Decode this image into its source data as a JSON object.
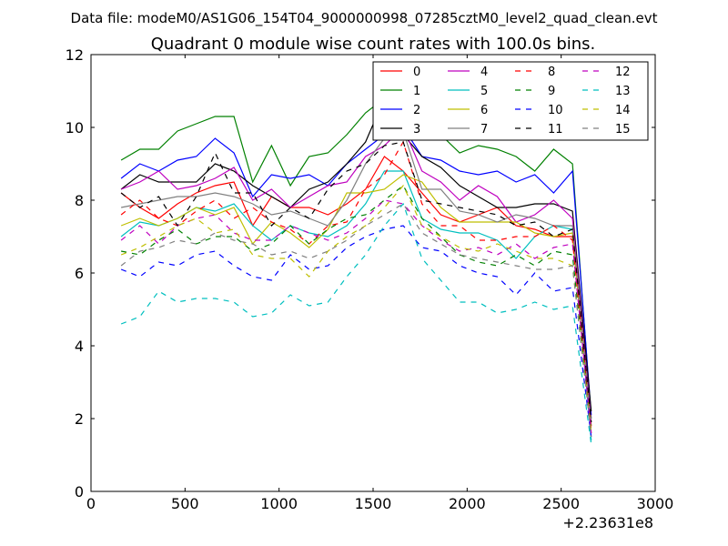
{
  "chart_data": {
    "type": "line",
    "suptitle": "Data file: modeM0/AS1G06_154T04_9000000998_07285cztM0_level2_quad_clean.evt",
    "title": "Quadrant 0 module wise count rates with 100.0s bins.",
    "xlabel": "",
    "ylabel": "",
    "x_offset_label": "+2.23631e8",
    "xlim": [
      0,
      3000
    ],
    "ylim": [
      0,
      12
    ],
    "xticks": [
      0,
      500,
      1000,
      1500,
      2000,
      2500,
      3000
    ],
    "yticks": [
      0,
      2,
      4,
      6,
      8,
      10,
      12
    ],
    "grid": false,
    "legend_position": "top-right",
    "x": [
      160,
      260,
      360,
      460,
      560,
      660,
      760,
      860,
      960,
      1060,
      1160,
      1260,
      1360,
      1460,
      1560,
      1660,
      1760,
      1860,
      1960,
      2060,
      2160,
      2260,
      2360,
      2460,
      2560,
      2660
    ],
    "series": [
      {
        "name": "0",
        "color": "#ff0000",
        "dash": "solid",
        "values": [
          8.2,
          7.8,
          7.5,
          7.9,
          8.2,
          8.4,
          8.5,
          7.3,
          8.1,
          7.8,
          7.8,
          7.6,
          7.9,
          8.3,
          9.2,
          8.8,
          8.2,
          7.6,
          7.4,
          7.6,
          7.8,
          7.3,
          7.2,
          7.0,
          7.0,
          1.8
        ]
      },
      {
        "name": "1",
        "color": "#008000",
        "dash": "solid",
        "values": [
          9.1,
          9.4,
          9.4,
          9.9,
          10.1,
          10.3,
          10.3,
          8.5,
          9.5,
          8.4,
          9.2,
          9.3,
          9.8,
          10.4,
          10.8,
          10.7,
          9.7,
          9.8,
          9.3,
          9.5,
          9.4,
          9.2,
          8.8,
          9.4,
          9.0,
          2.0
        ]
      },
      {
        "name": "2",
        "color": "#0000ff",
        "dash": "solid",
        "values": [
          8.6,
          9.0,
          8.8,
          9.1,
          9.2,
          9.7,
          9.3,
          8.1,
          8.7,
          8.6,
          8.7,
          8.4,
          9.0,
          9.4,
          9.8,
          10.0,
          9.2,
          9.1,
          8.8,
          8.7,
          8.8,
          8.5,
          8.7,
          8.2,
          8.8,
          2.1
        ]
      },
      {
        "name": "3",
        "color": "#000000",
        "dash": "solid",
        "values": [
          8.3,
          8.7,
          8.5,
          8.5,
          8.5,
          9.0,
          8.8,
          8.4,
          8.1,
          7.8,
          8.3,
          8.5,
          9.0,
          9.6,
          10.8,
          9.8,
          9.2,
          8.9,
          8.4,
          8.1,
          7.8,
          7.8,
          7.9,
          7.9,
          7.7,
          2.2
        ]
      },
      {
        "name": "4",
        "color": "#bf00bf",
        "dash": "solid",
        "values": [
          8.3,
          8.5,
          8.8,
          8.3,
          8.4,
          8.6,
          8.9,
          8.0,
          8.3,
          7.8,
          8.1,
          8.4,
          8.5,
          9.2,
          9.5,
          10.0,
          8.8,
          8.5,
          8.0,
          8.4,
          8.1,
          7.4,
          7.6,
          8.0,
          7.5,
          1.9
        ]
      },
      {
        "name": "5",
        "color": "#00bfbf",
        "dash": "solid",
        "values": [
          7.0,
          7.4,
          7.3,
          7.5,
          7.8,
          7.7,
          7.9,
          7.3,
          6.9,
          7.3,
          7.1,
          7.0,
          7.3,
          7.9,
          8.8,
          8.8,
          7.5,
          7.2,
          7.1,
          7.1,
          6.9,
          6.4,
          7.0,
          7.3,
          7.2,
          1.4
        ]
      },
      {
        "name": "6",
        "color": "#bfbf00",
        "dash": "solid",
        "values": [
          7.3,
          7.5,
          7.3,
          7.5,
          7.8,
          7.6,
          7.8,
          6.8,
          7.4,
          7.1,
          6.7,
          7.2,
          8.2,
          8.2,
          8.3,
          8.7,
          8.5,
          7.8,
          7.4,
          7.4,
          7.4,
          7.4,
          7.1,
          7.0,
          7.1,
          1.6
        ]
      },
      {
        "name": "7",
        "color": "#808080",
        "dash": "solid",
        "values": [
          7.8,
          7.9,
          8.0,
          8.1,
          8.1,
          8.2,
          8.1,
          7.9,
          7.6,
          7.7,
          7.5,
          7.3,
          8.0,
          9.0,
          9.7,
          9.9,
          8.3,
          8.3,
          7.7,
          7.6,
          7.4,
          7.6,
          7.5,
          7.3,
          7.3,
          1.8
        ]
      },
      {
        "name": "8",
        "color": "#ff0000",
        "dash": "dashed",
        "values": [
          7.6,
          8.0,
          7.5,
          7.3,
          7.7,
          8.0,
          7.5,
          7.8,
          7.4,
          7.2,
          6.8,
          7.3,
          7.4,
          8.3,
          8.7,
          9.6,
          7.9,
          7.3,
          7.3,
          6.9,
          6.9,
          7.0,
          7.0,
          7.3,
          6.9,
          1.7
        ]
      },
      {
        "name": "9",
        "color": "#008000",
        "dash": "dashed",
        "values": [
          6.6,
          6.5,
          6.9,
          7.2,
          6.8,
          7.0,
          7.0,
          6.6,
          6.8,
          7.3,
          6.8,
          7.2,
          7.5,
          7.6,
          8.0,
          8.4,
          7.5,
          7.0,
          6.5,
          6.3,
          6.2,
          6.5,
          6.2,
          6.6,
          6.5,
          1.6
        ]
      },
      {
        "name": "10",
        "color": "#0000ff",
        "dash": "dashed",
        "values": [
          6.1,
          5.9,
          6.3,
          6.2,
          6.5,
          6.6,
          6.2,
          5.9,
          5.8,
          6.5,
          6.1,
          6.2,
          6.7,
          7.0,
          7.2,
          7.3,
          6.7,
          6.6,
          6.2,
          6.0,
          5.9,
          5.4,
          6.0,
          5.5,
          5.6,
          1.5
        ]
      },
      {
        "name": "11",
        "color": "#000000",
        "dash": "dashed",
        "values": [
          8.2,
          7.8,
          8.1,
          7.3,
          8.1,
          9.3,
          8.2,
          8.2,
          7.3,
          7.8,
          7.5,
          8.3,
          8.8,
          9.0,
          9.5,
          9.6,
          8.0,
          7.9,
          7.8,
          7.7,
          7.6,
          7.3,
          7.4,
          7.0,
          7.2,
          1.9
        ]
      },
      {
        "name": "12",
        "color": "#bf00bf",
        "dash": "dashed",
        "values": [
          6.9,
          7.3,
          6.8,
          7.3,
          7.5,
          7.6,
          7.1,
          6.9,
          6.9,
          7.3,
          7.1,
          6.9,
          7.1,
          7.5,
          8.0,
          7.9,
          7.3,
          6.9,
          6.6,
          6.7,
          6.5,
          6.8,
          6.4,
          6.7,
          6.8,
          1.6
        ]
      },
      {
        "name": "13",
        "color": "#00bfbf",
        "dash": "dashed",
        "values": [
          4.6,
          4.8,
          5.5,
          5.2,
          5.3,
          5.3,
          5.2,
          4.8,
          4.9,
          5.4,
          5.1,
          5.2,
          5.9,
          6.5,
          7.3,
          7.9,
          6.4,
          5.8,
          5.2,
          5.2,
          4.9,
          5.0,
          5.2,
          5.0,
          5.1,
          1.3
        ]
      },
      {
        "name": "14",
        "color": "#bfbf00",
        "dash": "dashed",
        "values": [
          6.5,
          6.7,
          7.0,
          7.3,
          7.5,
          7.1,
          7.2,
          6.5,
          6.4,
          6.4,
          5.9,
          6.6,
          7.0,
          7.3,
          7.8,
          8.4,
          7.3,
          7.0,
          6.7,
          6.6,
          6.8,
          6.6,
          6.4,
          6.4,
          6.2,
          1.6
        ]
      },
      {
        "name": "15",
        "color": "#808080",
        "dash": "dashed",
        "values": [
          6.2,
          6.6,
          6.7,
          6.9,
          6.8,
          7.1,
          6.9,
          6.8,
          6.5,
          6.6,
          6.4,
          6.6,
          6.9,
          7.3,
          7.6,
          7.9,
          7.1,
          6.8,
          6.5,
          6.4,
          6.3,
          6.2,
          6.1,
          6.1,
          6.2,
          1.5
        ]
      }
    ]
  }
}
